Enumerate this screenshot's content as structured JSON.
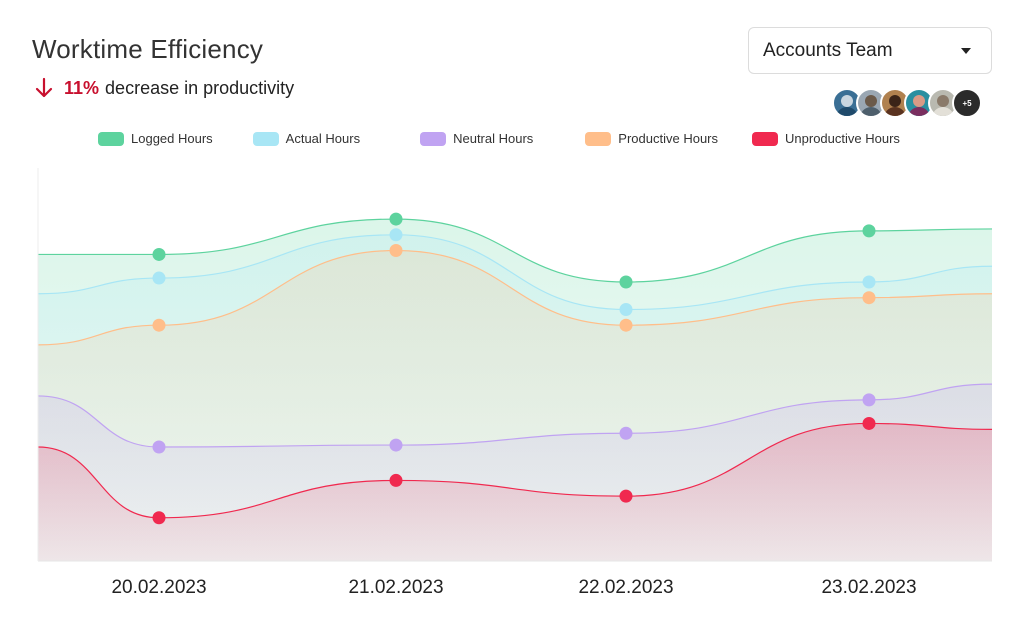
{
  "header": {
    "title": "Worktime Efficiency",
    "trend_percent": "11%",
    "trend_text": "decrease in productivity",
    "trend_color": "#c8102e"
  },
  "team_select": {
    "selected": "Accounts Team"
  },
  "members": {
    "more_label": "+5",
    "avatars": [
      {
        "bg": "#3a6f95",
        "face": "#c9d6e0",
        "body": "#1f4a6b"
      },
      {
        "bg": "#9aa7b3",
        "face": "#6b5a4a",
        "body": "#4e5f6c"
      },
      {
        "bg": "#b0814f",
        "face": "#3b2418",
        "body": "#5a3320"
      },
      {
        "bg": "#2a8fa0",
        "face": "#d99a86",
        "body": "#7a2e5f"
      },
      {
        "bg": "#b9b9b0",
        "face": "#8a7a6a",
        "body": "#e3e0d8"
      }
    ]
  },
  "chart_data": {
    "type": "area",
    "categories": [
      "20.02.2023",
      "21.02.2023",
      "22.02.2023",
      "23.02.2023"
    ],
    "ylim": [
      0,
      100
    ],
    "grid": false,
    "legend_position": "top",
    "series": [
      {
        "name": "Logged Hours",
        "color": "#5dd39e",
        "values": [
          78,
          87,
          71,
          84
        ],
        "start": 78,
        "end": 84.5
      },
      {
        "name": "Actual Hours",
        "color": "#a8e6f5",
        "values": [
          72,
          83,
          64,
          71
        ],
        "start": 68,
        "end": 75
      },
      {
        "name": "Productive Hours",
        "color": "#ffbe8a",
        "values": [
          60,
          79,
          60,
          67
        ],
        "start": 55,
        "end": 68
      },
      {
        "name": "Neutral Hours",
        "color": "#c0a3f2",
        "values": [
          29,
          29.5,
          32.5,
          41
        ],
        "start": 42,
        "end": 45
      },
      {
        "name": "Unproductive Hours",
        "color": "#f0294f",
        "values": [
          11,
          20.5,
          16.5,
          35
        ],
        "start": 29,
        "end": 33.5
      }
    ],
    "legend_order": [
      "Logged Hours",
      "Actual Hours",
      "Neutral Hours",
      "Productive Hours",
      "Unproductive Hours"
    ]
  }
}
